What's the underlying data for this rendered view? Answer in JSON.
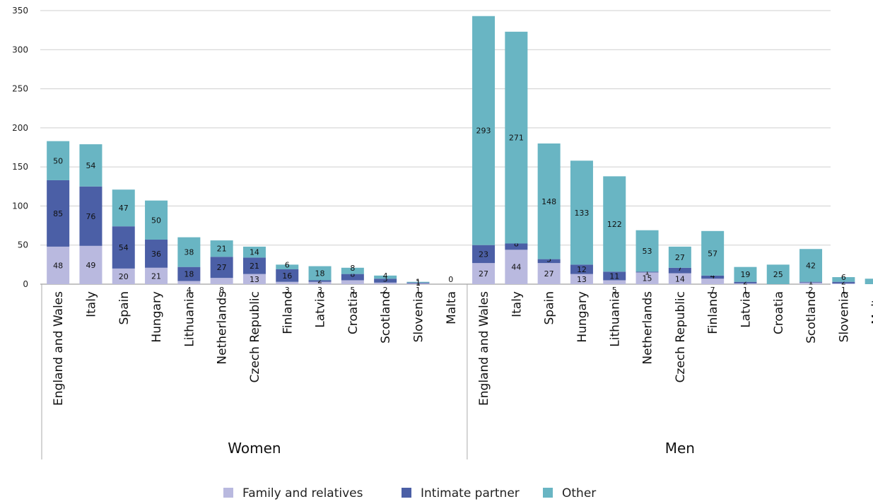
{
  "chart_data": {
    "type": "bar",
    "stacked": true,
    "ylim": [
      0,
      350
    ],
    "yticks": [
      0,
      50,
      100,
      150,
      200,
      250,
      300,
      350
    ],
    "grid": true,
    "legend_position": "bottom",
    "colors": {
      "Family and relatives": "#b9b9df",
      "Intimate partner": "#4b5fa6",
      "Other": "#69b5c3"
    },
    "groups": [
      {
        "name": "Women",
        "categories": [
          "England and Wales",
          "Italy",
          "Spain",
          "Hungary",
          "Lithuania",
          "Netherlands",
          "Czech Republic",
          "Finland",
          "Latvia",
          "Croatia",
          "Scotland",
          "Slovenia",
          "Malta"
        ],
        "series": [
          {
            "name": "Family and relatives",
            "values": [
              48,
              49,
              20,
              21,
              4,
              8,
              13,
              3,
              3,
              5,
              2,
              1,
              0
            ]
          },
          {
            "name": "Intimate partner",
            "values": [
              85,
              76,
              54,
              36,
              18,
              27,
              21,
              16,
              2,
              8,
              5,
              1,
              0
            ]
          },
          {
            "name": "Other",
            "values": [
              50,
              54,
              47,
              50,
              38,
              21,
              14,
              6,
              18,
              8,
              4,
              1,
              0
            ]
          }
        ]
      },
      {
        "name": "Men",
        "categories": [
          "England and Wales",
          "Italy",
          "Spain",
          "Hungary",
          "Lithuania",
          "Netherlands",
          "Czech Republic",
          "Finland",
          "Latvia",
          "Croatia",
          "Scotland",
          "Slovenia",
          "Malta"
        ],
        "series": [
          {
            "name": "Family and relatives",
            "values": [
              27,
              44,
              27,
              13,
              5,
              15,
              14,
              7,
              1,
              0,
              2,
              1,
              0
            ]
          },
          {
            "name": "Intimate partner",
            "values": [
              23,
              8,
              5,
              12,
              11,
              1,
              7,
              4,
              2,
              0,
              1,
              2,
              0
            ]
          },
          {
            "name": "Other",
            "values": [
              293,
              271,
              148,
              133,
              122,
              53,
              27,
              57,
              19,
              25,
              42,
              6,
              7
            ]
          }
        ]
      }
    ],
    "legend": [
      "Family and relatives",
      "Intimate partner",
      "Other"
    ]
  }
}
